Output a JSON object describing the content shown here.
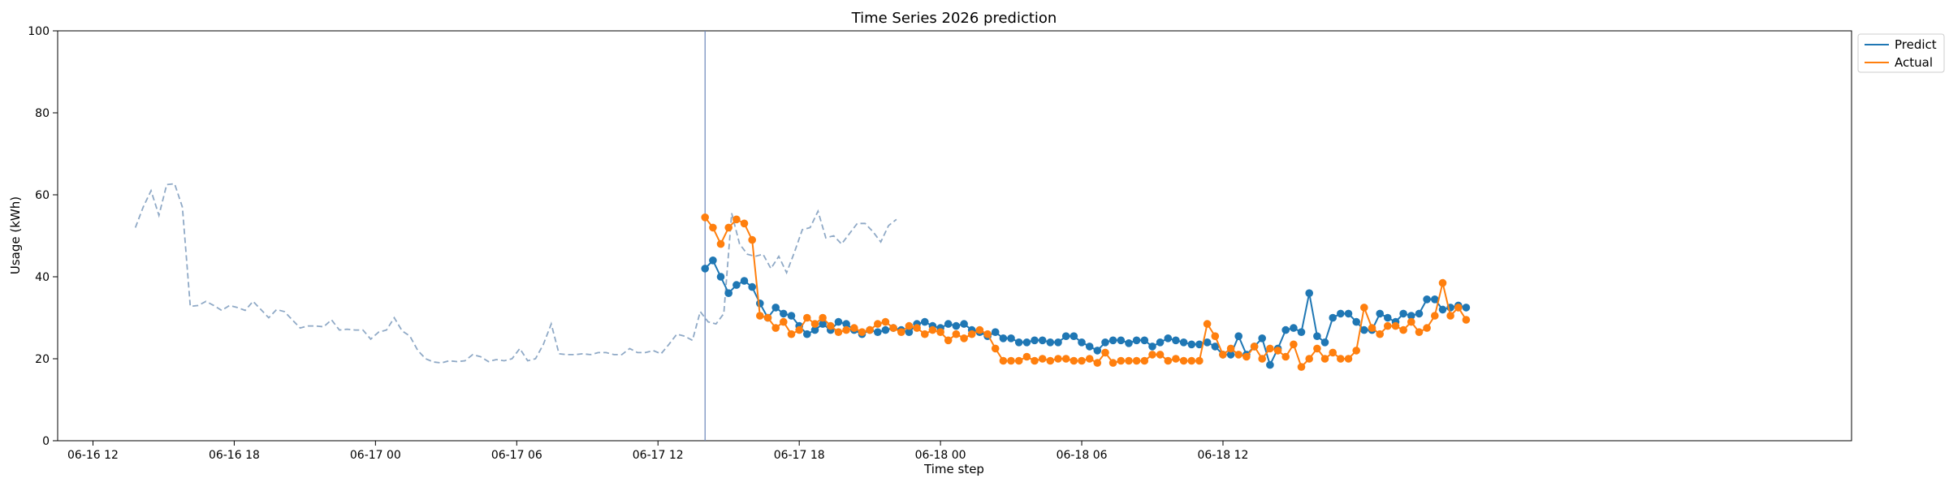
{
  "chart_data": {
    "type": "line",
    "title": "Time Series 2026 prediction",
    "xlabel": "Time step",
    "ylabel": "Usage (kWh)",
    "ylim": [
      0,
      100
    ],
    "yticks": [
      0,
      20,
      40,
      60,
      80,
      100
    ],
    "xlim_hours": [
      -1.5,
      74.7
    ],
    "xticks": [
      {
        "hour": 0,
        "label": "06-16 12"
      },
      {
        "hour": 6,
        "label": "06-16 18"
      },
      {
        "hour": 12,
        "label": "06-17 00"
      },
      {
        "hour": 18,
        "label": "06-17 06"
      },
      {
        "hour": 24,
        "label": "06-17 12"
      },
      {
        "hour": 30,
        "label": "06-17 18"
      },
      {
        "hour": 36,
        "label": "06-18 00"
      },
      {
        "hour": 42,
        "label": "06-18 06"
      },
      {
        "hour": 48,
        "label": "06-18 12"
      }
    ],
    "vline_hour": 26,
    "legend_position": "top-right",
    "colors": {
      "predict": "#1f77b4",
      "actual": "#ff7f0e",
      "history": "#8fa9c6",
      "vline": "#6a86b8"
    },
    "history": {
      "start_hour": 1.8,
      "step_hours": 0.3333,
      "values": [
        52,
        57,
        61,
        55,
        62.5,
        62.7,
        57,
        32.8,
        33,
        34,
        33,
        31.8,
        33,
        32.5,
        31.8,
        34,
        32,
        30,
        32,
        31.5,
        29.5,
        27.5,
        28,
        28,
        27.8,
        29.5,
        27,
        27.2,
        27,
        27,
        24.8,
        26.5,
        27,
        30,
        26.8,
        25.5,
        22,
        20,
        19.2,
        19,
        19.5,
        19.3,
        19.5,
        21,
        20.5,
        19.3,
        19.8,
        19.5,
        20,
        22.5,
        19.5,
        20,
        23.5,
        28.5,
        21.2,
        21,
        21,
        21.2,
        21,
        21.5,
        21.5,
        21,
        21,
        22.5,
        21.5,
        21.5,
        22,
        21.2,
        23.5,
        26,
        25.5,
        24.5,
        31.5,
        29,
        28.5,
        31,
        55.5,
        48,
        45.5,
        45,
        45.5,
        42,
        45,
        41,
        46,
        51.5,
        52,
        56,
        49.5,
        50,
        48,
        50.5,
        53,
        53,
        51,
        48.5,
        52.5,
        54
      ]
    },
    "series": [
      {
        "name": "Predict",
        "start_hour": 26,
        "step_hours": 0.3333,
        "values": [
          42,
          44,
          40,
          36,
          38,
          39,
          37.5,
          33.5,
          30,
          32.5,
          31,
          30.5,
          28,
          26,
          27,
          28.5,
          27,
          29,
          28.5,
          27,
          26,
          27,
          26.5,
          27,
          27.5,
          27,
          26.5,
          28.5,
          29,
          28,
          27.5,
          28.5,
          28,
          28.5,
          27,
          26.5,
          25.5,
          26.5,
          25,
          25,
          24,
          24,
          24.5,
          24.5,
          24,
          24,
          25.5,
          25.5,
          24,
          23,
          22,
          24,
          24.5,
          24.5,
          23.8,
          24.5,
          24.5,
          23,
          24,
          25,
          24.5,
          24,
          23.5,
          23.5,
          24,
          23,
          21,
          21,
          25.5,
          21,
          23,
          25,
          18.5,
          22.5,
          27,
          27.5,
          26.5,
          36,
          25.5,
          24,
          30,
          31,
          31,
          29,
          27,
          27,
          31,
          30,
          29,
          31,
          30.5,
          31,
          34.5,
          34.5,
          32,
          32.5,
          33,
          32.5
        ]
      },
      {
        "name": "Actual",
        "start_hour": 26,
        "step_hours": 0.3333,
        "values": [
          54.5,
          52,
          48,
          52,
          54,
          53,
          49,
          30.5,
          30,
          27.5,
          29,
          26,
          27,
          30,
          28.5,
          30,
          28,
          26.5,
          27,
          27.5,
          26.5,
          27,
          28.5,
          29,
          27.5,
          26.5,
          28,
          27.5,
          26,
          27,
          26.5,
          24.5,
          26,
          25,
          26,
          27,
          26,
          22.5,
          19.5,
          19.5,
          19.5,
          20.5,
          19.5,
          20,
          19.5,
          20,
          20,
          19.5,
          19.5,
          20,
          19,
          21.5,
          19,
          19.5,
          19.5,
          19.5,
          19.5,
          21,
          21,
          19.5,
          20,
          19.5,
          19.5,
          19.5,
          28.5,
          25.5,
          21,
          22.5,
          21,
          20.5,
          23,
          20,
          22.5,
          22,
          20.5,
          23.5,
          18,
          20,
          22.5,
          20,
          21.5,
          20,
          20,
          22,
          32.5,
          27.5,
          26,
          28,
          28,
          27,
          29,
          26.5,
          27.5,
          30.5,
          38.5,
          30.5,
          32.5,
          29.5
        ]
      }
    ]
  }
}
